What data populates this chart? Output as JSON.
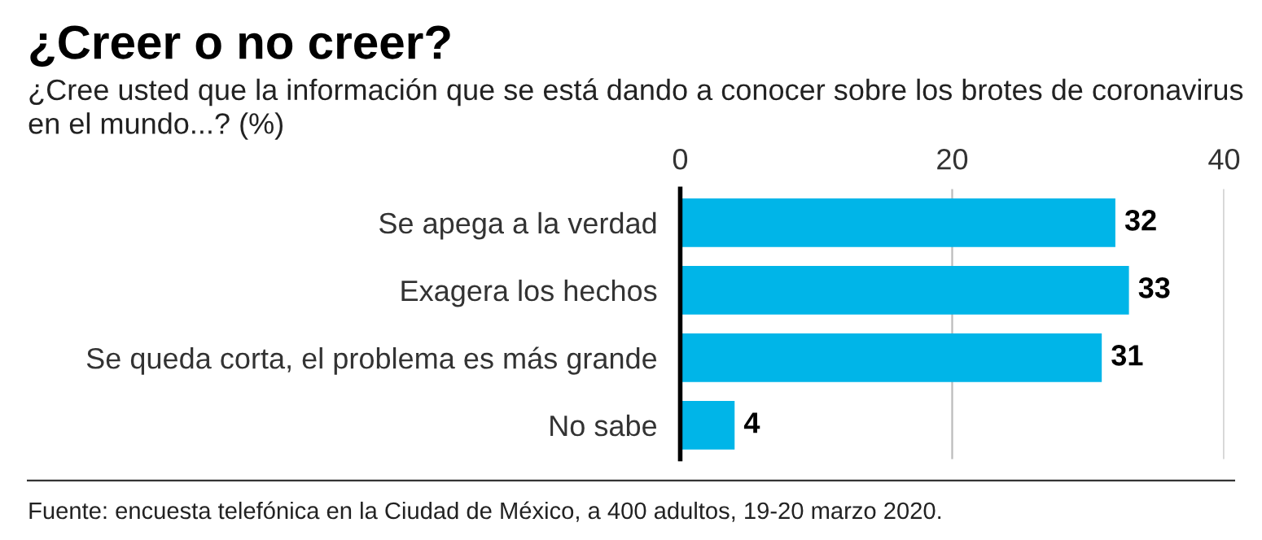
{
  "chart_data": {
    "type": "bar",
    "orientation": "horizontal",
    "title": "¿Creer o no creer?",
    "subtitle": "¿Cree usted que la información que se está dando a conocer sobre los brotes de coronavirus en el mundo...? (%)",
    "categories": [
      "Se apega a la verdad",
      "Exagera los hechos",
      "Se queda corta, el problema es más grande",
      "No sabe"
    ],
    "values": [
      32,
      33,
      31,
      4
    ],
    "color": "#00b5e8",
    "data_labels": true,
    "xlim": [
      0,
      40
    ],
    "xticks": [
      0,
      20,
      40
    ],
    "grid": "x",
    "annotations": [
      "Fuente: encuesta telefónica en la Ciudad de México, a 400 adultos, 19-20 marzo 2020."
    ]
  }
}
